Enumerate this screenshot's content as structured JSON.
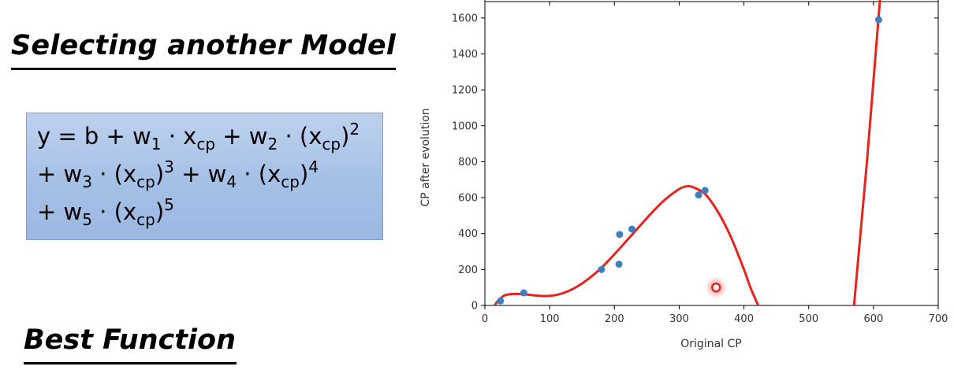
{
  "headings": {
    "model": "Selecting another Model",
    "best": "Best Function"
  },
  "formula": {
    "line1": {
      "y": "y = b + w",
      "w1_sub": "1",
      "dot1": " · x",
      "x_sub": "cp",
      "plus_w": " + w",
      "w2_sub": "2",
      "dot2": " · (x",
      "x2_sub": "cp",
      "close2": ")",
      "exp2": "2"
    },
    "line2": {
      "plus_w3": "+ w",
      "w3_sub": "3",
      "dot3": " · (x",
      "x3_sub": "cp",
      "close3": ")",
      "exp3": "3",
      "plus_w4": " + w",
      "w4_sub": "4",
      "dot4": " · (x",
      "x4_sub": "cp",
      "close4": ")",
      "exp4": "4"
    },
    "line3": {
      "plus_w5": "+ w",
      "w5_sub": "5",
      "dot5": " · (x",
      "x5_sub": "cp",
      "close5": ")",
      "exp5": "5"
    }
  },
  "colors": {
    "curve": "#e8231c",
    "points": "#3f7fbf",
    "highlight": "#e8231c"
  },
  "chart_data": {
    "type": "scatter",
    "xlabel": "Original CP",
    "ylabel": "CP after evolution",
    "xlim": [
      0,
      700
    ],
    "ylim": [
      0,
      1700
    ],
    "xticks": [
      0,
      100,
      200,
      300,
      400,
      500,
      600,
      700
    ],
    "yticks": [
      0,
      200,
      400,
      600,
      800,
      1000,
      1200,
      1400,
      1600
    ],
    "points": [
      {
        "x": 24,
        "y": 25
      },
      {
        "x": 60,
        "y": 70
      },
      {
        "x": 180,
        "y": 200
      },
      {
        "x": 207,
        "y": 230
      },
      {
        "x": 208,
        "y": 395
      },
      {
        "x": 227,
        "y": 425
      },
      {
        "x": 330,
        "y": 615
      },
      {
        "x": 340,
        "y": 640
      },
      {
        "x": 608,
        "y": 1590
      }
    ],
    "highlight_point": {
      "x": 357,
      "y": 100
    },
    "curve": [
      [
        15,
        0
      ],
      [
        20,
        25
      ],
      [
        30,
        55
      ],
      [
        40,
        63
      ],
      [
        50,
        64
      ],
      [
        60,
        62
      ],
      [
        80,
        55
      ],
      [
        100,
        53
      ],
      [
        120,
        68
      ],
      [
        140,
        100
      ],
      [
        160,
        148
      ],
      [
        180,
        210
      ],
      [
        200,
        285
      ],
      [
        220,
        365
      ],
      [
        240,
        445
      ],
      [
        260,
        525
      ],
      [
        280,
        595
      ],
      [
        300,
        648
      ],
      [
        310,
        662
      ],
      [
        320,
        660
      ],
      [
        340,
        620
      ],
      [
        360,
        520
      ],
      [
        380,
        380
      ],
      [
        400,
        200
      ],
      [
        410,
        100
      ],
      [
        422,
        0
      ]
    ],
    "curve2": [
      [
        570,
        0
      ],
      [
        590,
        800
      ],
      [
        610,
        1700
      ]
    ],
    "grid": false
  }
}
